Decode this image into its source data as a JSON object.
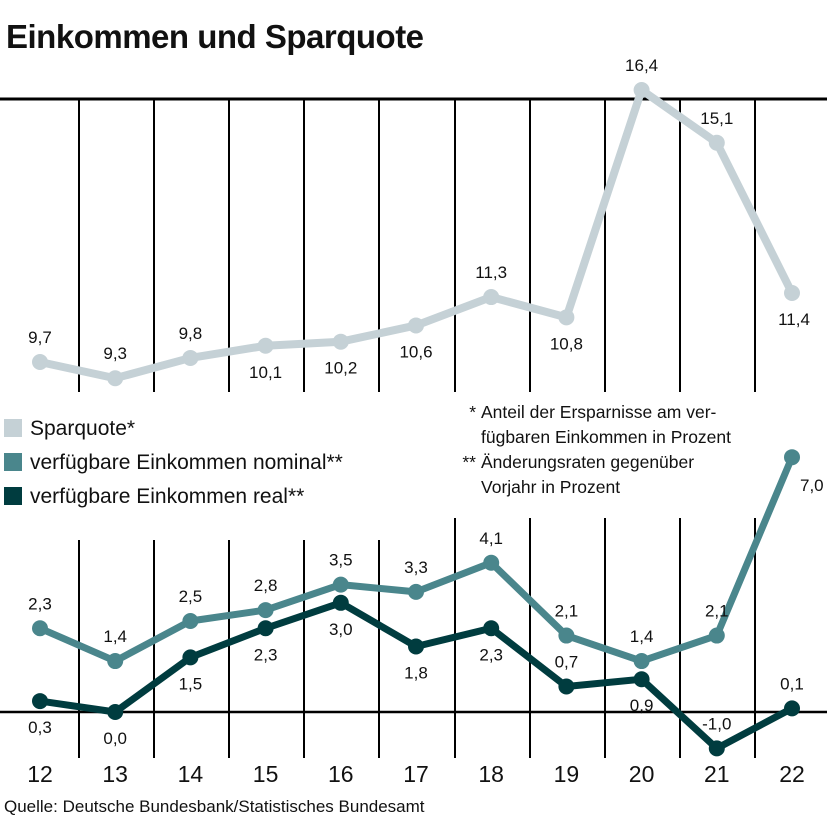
{
  "chart_data": {
    "type": "line",
    "title": "Einkommen und Sparquote",
    "source": "Quelle: Deutsche Bundesbank/Statistisches Bundesamt",
    "categories": [
      "12",
      "13",
      "14",
      "15",
      "16",
      "17",
      "18",
      "19",
      "20",
      "21",
      "22"
    ],
    "series": [
      {
        "name": "Sparquote*",
        "color": "#c5d1d6",
        "values": [
          9.7,
          9.3,
          9.8,
          10.1,
          10.2,
          10.6,
          11.3,
          10.8,
          16.4,
          15.1,
          11.4
        ],
        "labels": [
          "9,7",
          "9,3",
          "9,8",
          "10,1",
          "10,2",
          "10,6",
          "11,3",
          "10,8",
          "16,4",
          "15,1",
          "11,4"
        ]
      },
      {
        "name": "verfügbare Einkommen nominal**",
        "color": "#4a868c",
        "values": [
          2.3,
          1.4,
          2.5,
          2.8,
          3.5,
          3.3,
          4.1,
          2.1,
          1.4,
          2.1,
          7.0
        ],
        "labels": [
          "2,3",
          "1,4",
          "2,5",
          "2,8",
          "3,5",
          "3,3",
          "4,1",
          "2,1",
          "1,4",
          "2,1",
          "7,0"
        ]
      },
      {
        "name": "verfügbare Einkommen real**",
        "color": "#003c3f",
        "values": [
          0.3,
          0.0,
          1.5,
          2.3,
          3.0,
          1.8,
          2.3,
          0.7,
          0.9,
          -1.0,
          0.1
        ],
        "labels": [
          "0,3",
          "0,0",
          "1,5",
          "2,3",
          "3,0",
          "1,8",
          "2,3",
          "0,7",
          "0,9",
          "-1,0",
          "0,1"
        ]
      }
    ],
    "notes": [
      {
        "marker": "*",
        "lines": [
          "Anteil der Ersparnisse am ver-",
          "fügbaren Einkommen in Prozent"
        ]
      },
      {
        "marker": "**",
        "lines": [
          "Änderungsraten gegenüber",
          "Vorjahr in Prozent"
        ]
      }
    ],
    "grid": true,
    "zero_line": true
  }
}
